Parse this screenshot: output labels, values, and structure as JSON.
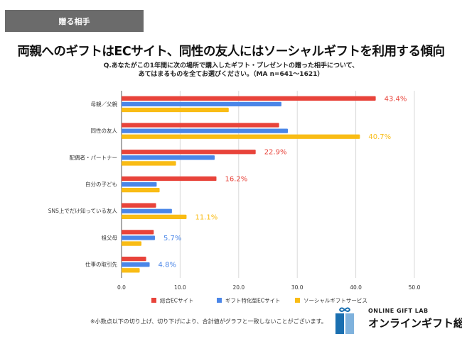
{
  "section_tag": "贈る相手",
  "headline": "両親へのギフトはECサイト、同性の友人にはソーシャルギフトを利用する傾向",
  "question": [
    "Q.あなたがこの1年間に次の場所で購入したギフト・プレゼントの贈った相手について、",
    "あてはまるものを全てお選びください。（MA n=641〜1621）"
  ],
  "chart_data": {
    "type": "bar",
    "orientation": "horizontal",
    "categories": [
      "母親／父親",
      "同性の友人",
      "配偶者・パートナー",
      "自分の子ども",
      "SNS上でだけ知っている友人",
      "祖父母",
      "仕事の取引先"
    ],
    "series": [
      {
        "name": "総合ECサイト",
        "color": "#e8433a",
        "values": [
          43.4,
          26.9,
          22.9,
          16.2,
          5.9,
          5.5,
          4.2
        ]
      },
      {
        "name": "ギフト特化型ECサイト",
        "color": "#4a86e8",
        "values": [
          27.3,
          28.4,
          15.9,
          6.0,
          8.6,
          5.7,
          4.8
        ]
      },
      {
        "name": "ソーシャルギフトサービス",
        "color": "#f9bc15",
        "values": [
          18.3,
          40.7,
          9.3,
          6.5,
          11.1,
          3.4,
          3.1
        ]
      }
    ],
    "data_labels": [
      {
        "category": 0,
        "series": 0,
        "text": "43.4%"
      },
      {
        "category": 1,
        "series": 2,
        "text": "40.7%"
      },
      {
        "category": 2,
        "series": 0,
        "text": "22.9%"
      },
      {
        "category": 3,
        "series": 0,
        "text": "16.2%"
      },
      {
        "category": 4,
        "series": 2,
        "text": "11.1%"
      },
      {
        "category": 5,
        "series": 1,
        "text": "5.7%"
      },
      {
        "category": 6,
        "series": 1,
        "text": "4.8%"
      }
    ],
    "xlim": [
      0,
      50
    ],
    "xticks": [
      "0.0",
      "10.0",
      "20.0",
      "30.0",
      "40.0",
      "50.0"
    ],
    "grid": true,
    "legend": "bottom"
  },
  "footnote": "※小数点以下の切り上げ、切り下げにより、合計値がグラフと一致しないことがございます。",
  "logo": {
    "en": "ONLINE GIFT LAB",
    "jp": "オンラインギフト総研"
  }
}
